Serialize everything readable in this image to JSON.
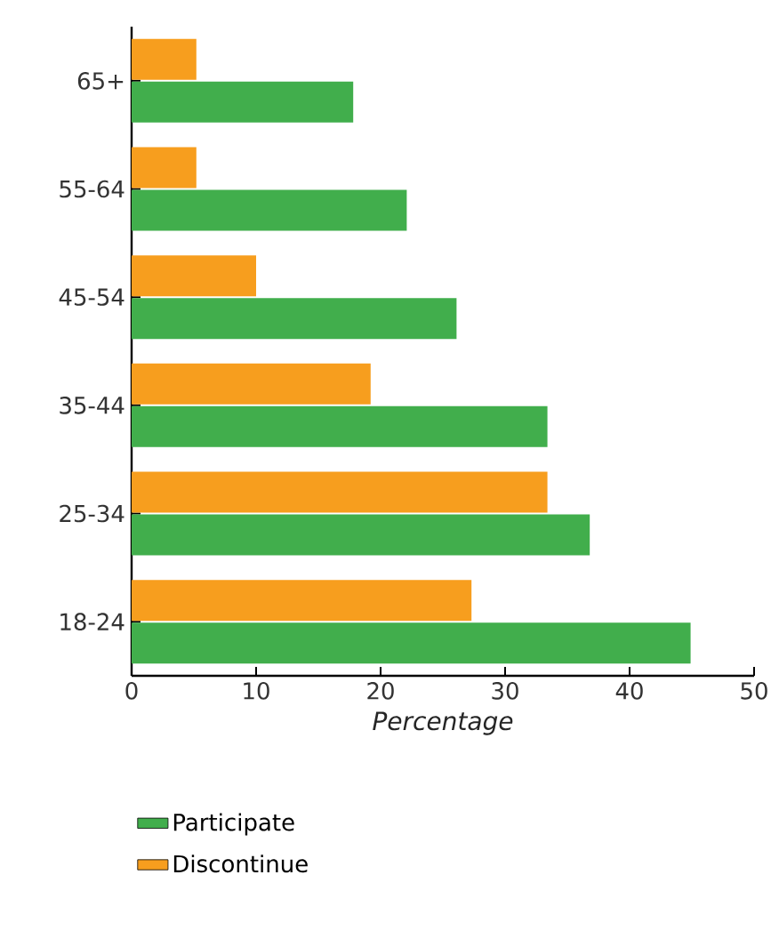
{
  "chart_data": {
    "type": "bar",
    "orientation": "horizontal",
    "xlabel": "Percentage",
    "categories": [
      "65+",
      "55-64",
      "45-54",
      "35-44",
      "25-34",
      "18-24"
    ],
    "series": [
      {
        "name": "Participate",
        "color": "#41ae4c",
        "values": [
          17.8,
          22.1,
          26.1,
          33.4,
          36.8,
          44.9
        ]
      },
      {
        "name": "Discontinue",
        "color": "#f79e1e",
        "values": [
          5.2,
          5.2,
          10.0,
          19.2,
          33.4,
          27.3
        ]
      }
    ],
    "xlim": [
      0,
      50
    ],
    "xticks": [
      0,
      10,
      20,
      30,
      40,
      50
    ],
    "grid": false,
    "legend": "bottom"
  }
}
